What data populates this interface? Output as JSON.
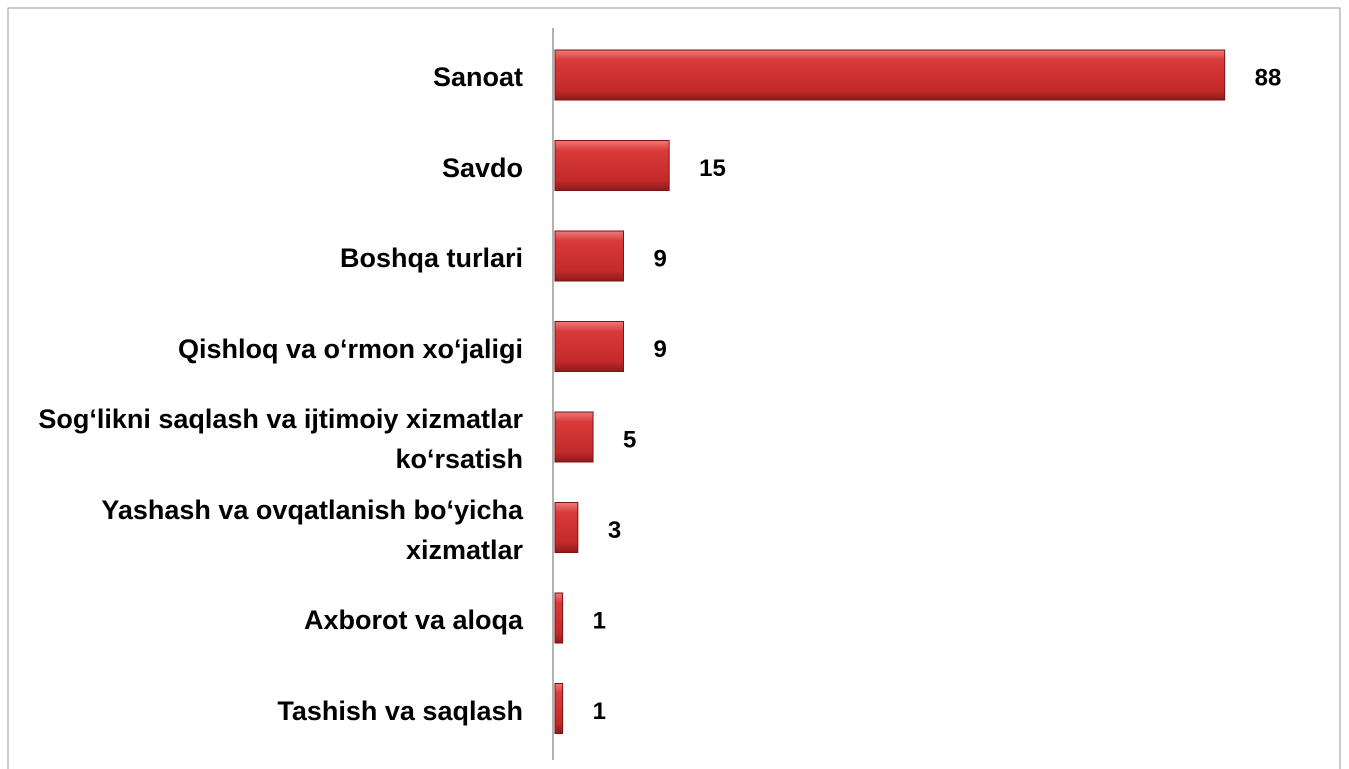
{
  "chart_data": {
    "type": "bar",
    "orientation": "horizontal",
    "categories": [
      "Sanoat",
      "Savdo",
      "Boshqa turlari",
      "Qishloq va o‘rmon xo‘jaligi",
      "Sog‘likni saqlash va ijtimoiy xizmatlar ko‘rsatish",
      "Yashash va ovqatlanish bo‘yicha xizmatlar",
      "Axborot va aloqa",
      "Tashish va saqlash"
    ],
    "values": [
      88,
      15,
      9,
      9,
      5,
      3,
      1,
      1
    ],
    "color": "#c8282d",
    "xlim": [
      0,
      100
    ]
  }
}
